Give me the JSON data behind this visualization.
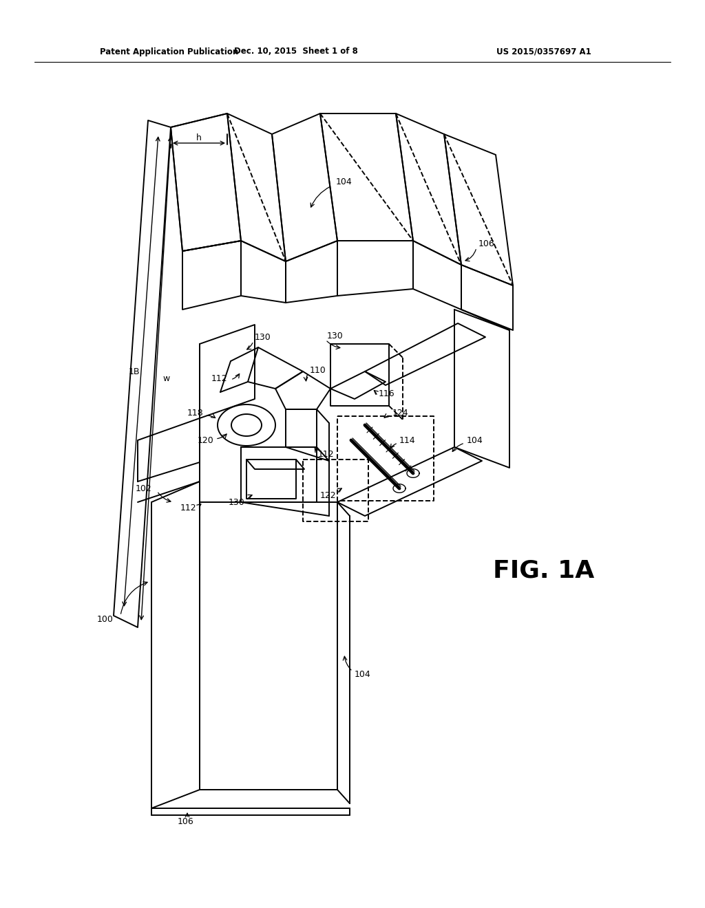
{
  "bg_color": "#ffffff",
  "line_color": "#000000",
  "header_left": "Patent Application Publication",
  "header_mid": "Dec. 10, 2015  Sheet 1 of 8",
  "header_right": "US 2015/0357697 A1",
  "fig_label": "FIG. 1A"
}
